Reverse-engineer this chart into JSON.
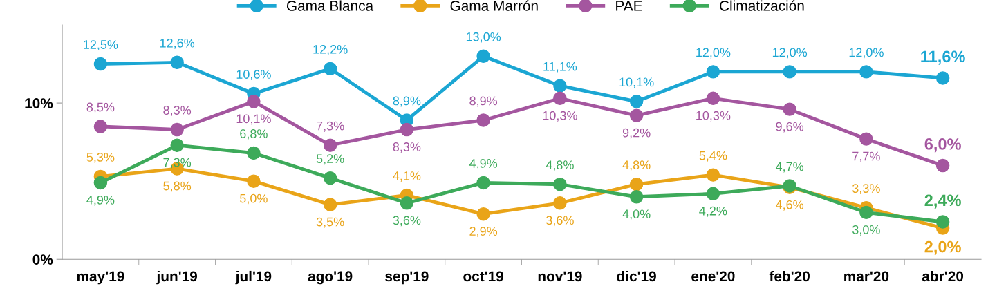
{
  "chart_data": {
    "type": "line",
    "categories": [
      "may'19",
      "jun'19",
      "jul'19",
      "ago'19",
      "sep'19",
      "oct'19",
      "nov'19",
      "dic'19",
      "ene'20",
      "feb'20",
      "mar'20",
      "abr'20"
    ],
    "ylim": [
      0,
      15
    ],
    "yticks": [
      {
        "value": 0,
        "label": "0%"
      },
      {
        "value": 10,
        "label": "10%"
      }
    ],
    "grid": false,
    "legend": "top",
    "marker": "circle",
    "line_style": "solid",
    "series": [
      {
        "name": "Gama Blanca",
        "color": "#1ba6d3",
        "values": [
          12.5,
          12.6,
          10.6,
          12.2,
          8.9,
          13.0,
          11.1,
          10.1,
          12.0,
          12.0,
          12.0,
          11.6
        ],
        "value_labels": [
          "12,5%",
          "12,6%",
          "10,6%",
          "12,2%",
          "8,9%",
          "13,0%",
          "11,1%",
          "10,1%",
          "12,0%",
          "12,0%",
          "12,0%",
          "11,6%"
        ]
      },
      {
        "name": "Gama Marrón",
        "color": "#e9a418",
        "values": [
          5.3,
          5.8,
          5.0,
          3.5,
          4.1,
          2.9,
          3.6,
          4.8,
          5.4,
          4.6,
          3.3,
          2.0
        ],
        "value_labels": [
          "5,3%",
          "5,8%",
          "5,0%",
          "3,5%",
          "4,1%",
          "2,9%",
          "3,6%",
          "4,8%",
          "5,4%",
          "4,6%",
          "3,3%",
          "2,0%"
        ]
      },
      {
        "name": "PAE",
        "color": "#a4569f",
        "values": [
          8.5,
          8.3,
          10.1,
          7.3,
          8.3,
          8.9,
          10.3,
          9.2,
          10.3,
          9.6,
          7.7,
          6.0
        ],
        "value_labels": [
          "8,5%",
          "8,3%",
          "10,1%",
          "7,3%",
          "8,3%",
          "8,9%",
          "10,3%",
          "9,2%",
          "10,3%",
          "9,6%",
          "7,7%",
          "6,0%"
        ]
      },
      {
        "name": "Climatización",
        "color": "#3daa5a",
        "values": [
          4.9,
          7.3,
          6.8,
          5.2,
          3.6,
          4.9,
          4.8,
          4.0,
          4.2,
          4.7,
          3.0,
          2.4
        ],
        "value_labels": [
          "4,9%",
          "7,3%",
          "6,8%",
          "5,2%",
          "3,6%",
          "4,9%",
          "4,8%",
          "4,0%",
          "4,2%",
          "4,7%",
          "3,0%",
          "2,4%"
        ]
      }
    ]
  }
}
